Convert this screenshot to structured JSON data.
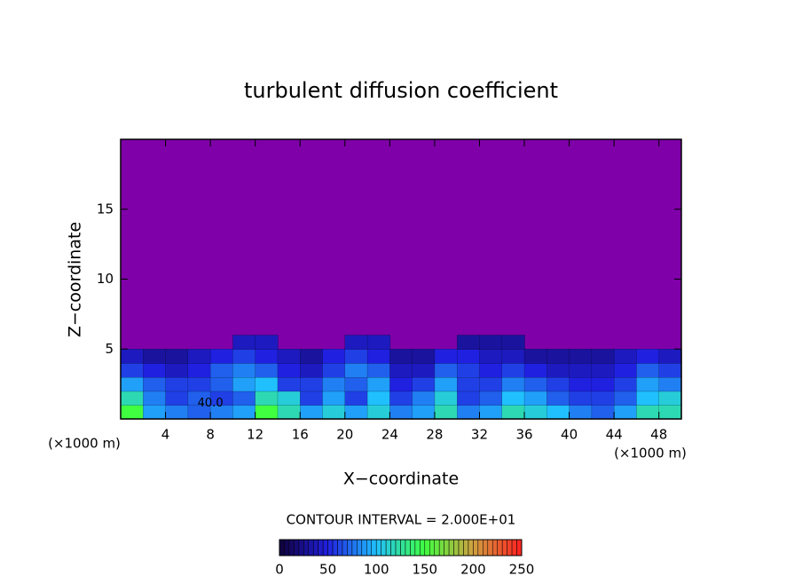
{
  "chart_data": {
    "type": "contour",
    "title": "turbulent diffusion coefficient",
    "xlabel": "X−coordinate",
    "ylabel": "Z−coordinate",
    "xunit": "(×1000 m)",
    "yunit": "(×1000 m)",
    "contour_interval_text": "CONTOUR INTERVAL = 2.000E+01",
    "xlim": [
      0,
      50
    ],
    "ylim": [
      0,
      20
    ],
    "xticks": [
      4,
      8,
      12,
      16,
      20,
      24,
      28,
      32,
      36,
      40,
      44,
      48
    ],
    "yticks": [
      5,
      10,
      15
    ],
    "background_color": "#7f00a8",
    "x": [
      1,
      3,
      5,
      7,
      9,
      11,
      13,
      15,
      17,
      19,
      21,
      23,
      25,
      27,
      29,
      31,
      33,
      35,
      37,
      39,
      41,
      43,
      45,
      47,
      49
    ],
    "y": [
      0.5,
      1.5,
      2.5,
      3.5,
      4.5,
      5.5
    ],
    "z": [
      [
        150,
        90,
        80,
        70,
        80,
        90,
        150,
        120,
        90,
        110,
        90,
        110,
        80,
        90,
        120,
        80,
        90,
        120,
        110,
        100,
        80,
        70,
        90,
        120,
        120
      ],
      [
        120,
        80,
        60,
        70,
        60,
        70,
        120,
        110,
        60,
        90,
        60,
        100,
        60,
        80,
        110,
        60,
        70,
        100,
        90,
        70,
        60,
        60,
        70,
        100,
        110
      ],
      [
        90,
        70,
        60,
        60,
        70,
        90,
        100,
        60,
        60,
        80,
        70,
        90,
        50,
        60,
        90,
        60,
        60,
        80,
        70,
        60,
        50,
        50,
        60,
        90,
        80
      ],
      [
        60,
        50,
        40,
        50,
        70,
        80,
        70,
        50,
        40,
        60,
        80,
        70,
        40,
        40,
        70,
        60,
        50,
        60,
        50,
        40,
        40,
        40,
        50,
        70,
        60
      ],
      [
        40,
        30,
        30,
        40,
        50,
        60,
        50,
        40,
        30,
        50,
        60,
        50,
        30,
        30,
        50,
        50,
        40,
        40,
        30,
        30,
        30,
        30,
        40,
        50,
        40
      ],
      [
        null,
        null,
        null,
        null,
        null,
        40,
        40,
        null,
        null,
        null,
        40,
        40,
        null,
        null,
        null,
        30,
        30,
        30,
        null,
        null,
        null,
        null,
        null,
        null,
        null
      ]
    ],
    "annotations": [
      {
        "text": "40.0",
        "x": 8,
        "y": 1.1
      }
    ],
    "clim": [
      0,
      250
    ],
    "colormap": [
      "#10003a",
      "#2020e0",
      "#20c0ff",
      "#40ff40",
      "#d0a040",
      "#ff2020"
    ],
    "cbar_ticks": [
      0,
      50,
      100,
      150,
      200,
      250
    ]
  }
}
